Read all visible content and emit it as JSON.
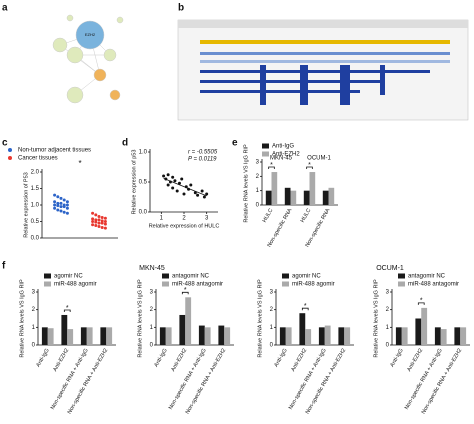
{
  "panel_labels": [
    "a",
    "b",
    "c",
    "d",
    "e",
    "f"
  ],
  "network": {
    "center": "EZH2"
  },
  "figure_f": {
    "titles": [
      "MKN-45",
      "OCUM-1"
    ]
  },
  "chart_data": [
    {
      "type": "strip",
      "ylabel": "Relative expression of P53",
      "annotations": [
        "*"
      ],
      "ylim": [
        0,
        2
      ],
      "yticks": [
        {
          "value": 0,
          "label": "0.0"
        },
        {
          "value": 0.5,
          "label": "0.5"
        },
        {
          "value": 1,
          "label": "1.0"
        },
        {
          "value": 1.5,
          "label": "1.5"
        },
        {
          "value": 2,
          "label": "2.0"
        }
      ],
      "series": [
        {
          "name": "Non-tumor adjacent tissues",
          "color": "#2c64c8",
          "values": [
            1.3,
            1.25,
            1.2,
            1.15,
            1.1,
            1.1,
            1.05,
            1.05,
            1.0,
            1.0,
            1.0,
            0.98,
            0.95,
            0.95,
            0.9,
            0.9,
            0.85,
            0.82,
            0.78,
            0.75
          ]
        },
        {
          "name": "Cancer tissues",
          "color": "#e8372f",
          "values": [
            0.75,
            0.7,
            0.65,
            0.62,
            0.6,
            0.58,
            0.55,
            0.55,
            0.52,
            0.5,
            0.5,
            0.48,
            0.45,
            0.45,
            0.42,
            0.4,
            0.38,
            0.35,
            0.32,
            0.3
          ]
        }
      ]
    },
    {
      "type": "scatter",
      "xlabel": "Relative expression of HULC",
      "ylabel": "Relative expression of p53",
      "annotations": [
        "r = -0.5505",
        "P = 0.0119"
      ],
      "xlim": [
        0.5,
        3.5
      ],
      "xticks": [
        1,
        2,
        3
      ],
      "ylim": [
        0,
        1
      ],
      "yticks": [
        {
          "value": 0,
          "label": "0.0"
        },
        {
          "value": 0.5,
          "label": "0.5"
        },
        {
          "value": 1,
          "label": "1.0"
        }
      ],
      "x": [
        1.1,
        1.2,
        1.3,
        1.3,
        1.4,
        1.5,
        1.5,
        1.6,
        1.7,
        1.8,
        1.9,
        2.0,
        2.1,
        2.2,
        2.3,
        2.5,
        2.6,
        2.8,
        2.9,
        3.0
      ],
      "values": [
        0.6,
        0.55,
        0.62,
        0.45,
        0.5,
        0.58,
        0.4,
        0.52,
        0.35,
        0.48,
        0.55,
        0.3,
        0.42,
        0.38,
        0.45,
        0.32,
        0.28,
        0.35,
        0.25,
        0.3
      ]
    },
    {
      "type": "bar",
      "ylabel": "Relative RNA levels VS IgG RIP",
      "annotations": [
        "*",
        "*"
      ],
      "groups": [
        "MKN-45",
        "OCUM-1"
      ],
      "categories": [
        "HULC",
        "Non-specific RNA",
        "HULC",
        "Non-specific RNA"
      ],
      "ylim": [
        0,
        3
      ],
      "yticks": [
        0,
        1,
        2,
        3
      ],
      "series": [
        {
          "name": "Anti-IgG",
          "color": "#1a1a1a",
          "values": [
            1.0,
            1.2,
            1.0,
            1.0
          ]
        },
        {
          "name": "Anti-EZH2",
          "color": "#aaaaaa",
          "values": [
            2.3,
            1.0,
            2.3,
            1.2
          ]
        }
      ]
    },
    {
      "type": "bar",
      "ylabel": "Relative RNA levels VS IgG RIP",
      "annotations": [
        "*"
      ],
      "categories": [
        "Anti-IgG",
        "Anti-EZH2",
        "Non-specific RNA + Anti-IgG",
        "Non-specific RNA + Anti-EZH2"
      ],
      "ylim": [
        0,
        3
      ],
      "yticks": [
        0,
        1,
        2,
        3
      ],
      "series": [
        {
          "name": "agomir NC",
          "color": "#1a1a1a",
          "values": [
            1.0,
            1.7,
            1.0,
            1.0
          ]
        },
        {
          "name": "miR-488 agomir",
          "color": "#aaaaaa",
          "values": [
            0.95,
            0.9,
            1.0,
            1.0
          ]
        }
      ]
    },
    {
      "type": "bar",
      "ylabel": "Relative RNA levels VS IgG RIP",
      "annotations": [
        "*"
      ],
      "categories": [
        "Anti-IgG",
        "Anti-EZH2",
        "Non-specific RNA + Anti-IgG",
        "Non-specific RNA + Anti-EZH2"
      ],
      "ylim": [
        0,
        3
      ],
      "yticks": [
        0,
        1,
        2,
        3
      ],
      "series": [
        {
          "name": "antagomir NC",
          "color": "#1a1a1a",
          "values": [
            1.0,
            1.7,
            1.1,
            1.1
          ]
        },
        {
          "name": "miR-488 antagomir",
          "color": "#aaaaaa",
          "values": [
            1.0,
            2.7,
            1.0,
            1.0
          ]
        }
      ]
    },
    {
      "type": "bar",
      "ylabel": "Relative RNA levels VS IgG RIP",
      "annotations": [
        "*"
      ],
      "categories": [
        "Anti-IgG",
        "Anti-EZH2",
        "Non-specific RNA + Anti-IgG",
        "Non-specific RNA + Anti-EZH2"
      ],
      "ylim": [
        0,
        3
      ],
      "yticks": [
        0,
        1,
        2,
        3
      ],
      "series": [
        {
          "name": "agomir NC",
          "color": "#1a1a1a",
          "values": [
            1.0,
            1.8,
            1.0,
            1.0
          ]
        },
        {
          "name": "miR-488 agomir",
          "color": "#aaaaaa",
          "values": [
            1.0,
            0.9,
            1.1,
            1.0
          ]
        }
      ]
    },
    {
      "type": "bar",
      "ylabel": "Relative RNA levels VS IgG RIP",
      "annotations": [
        "*"
      ],
      "categories": [
        "Anti-IgG",
        "Anti-EZH2",
        "Non-specific RNA + Anti-IgG",
        "Non-specific RNA + Anti-EZH2"
      ],
      "ylim": [
        0,
        3
      ],
      "yticks": [
        0,
        1,
        2,
        3
      ],
      "series": [
        {
          "name": "antagomir NC",
          "color": "#1a1a1a",
          "values": [
            1.0,
            1.5,
            1.0,
            1.0
          ]
        },
        {
          "name": "miR-488 antagomir",
          "color": "#aaaaaa",
          "values": [
            1.0,
            2.1,
            0.9,
            1.0
          ]
        }
      ]
    }
  ]
}
